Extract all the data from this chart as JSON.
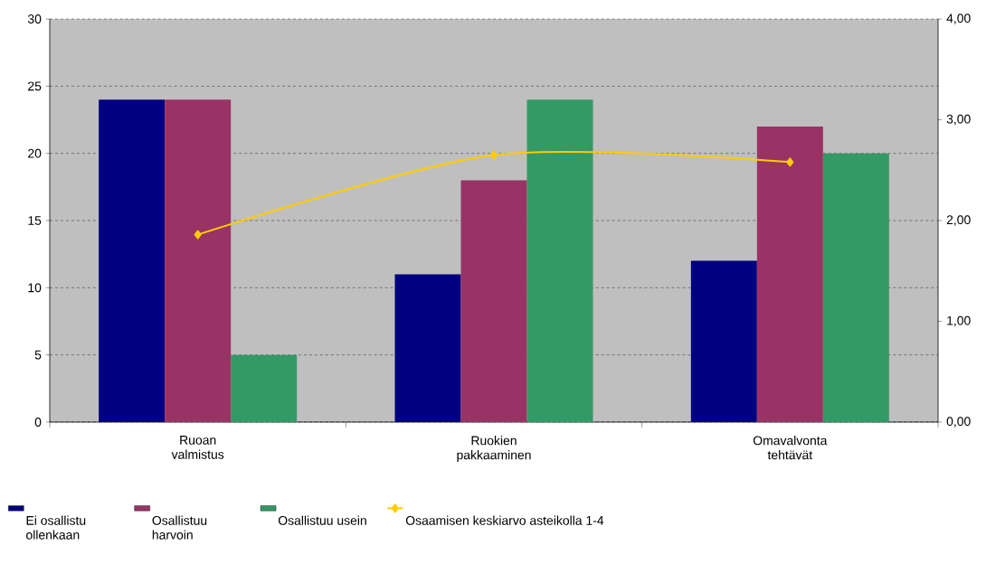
{
  "chart_data": {
    "type": "bar",
    "categories": [
      "Ruoan valmistus",
      "Ruokien pakkaaminen",
      "Omavalvonta tehtävät"
    ],
    "series": [
      {
        "name": "Ei osallistu ollenkaan",
        "color": "#000080",
        "values": [
          24,
          11,
          12
        ]
      },
      {
        "name": "Osallistuu harvoin",
        "color": "#993366",
        "values": [
          24,
          18,
          22
        ]
      },
      {
        "name": "Osallistuu usein",
        "color": "#339966",
        "values": [
          5,
          24,
          20
        ]
      },
      {
        "name": "Osaamisen keskiarvo asteikolla 1-4",
        "color": "#ffcc00",
        "type": "line",
        "axis": "y2",
        "marker": "diamond",
        "values": [
          1.86,
          2.65,
          2.58
        ]
      }
    ],
    "ylim": [
      0,
      30
    ],
    "yticks": [
      0,
      5,
      10,
      15,
      20,
      25,
      30
    ],
    "y2lim": [
      0,
      4
    ],
    "y2ticks": [
      {
        "value": 0,
        "label": "0,00"
      },
      {
        "value": 1,
        "label": "1,00"
      },
      {
        "value": 2,
        "label": "2,00"
      },
      {
        "value": 3,
        "label": "3,00"
      },
      {
        "value": 4,
        "label": "4,00"
      }
    ],
    "grid": "y",
    "legend": "bottom"
  }
}
